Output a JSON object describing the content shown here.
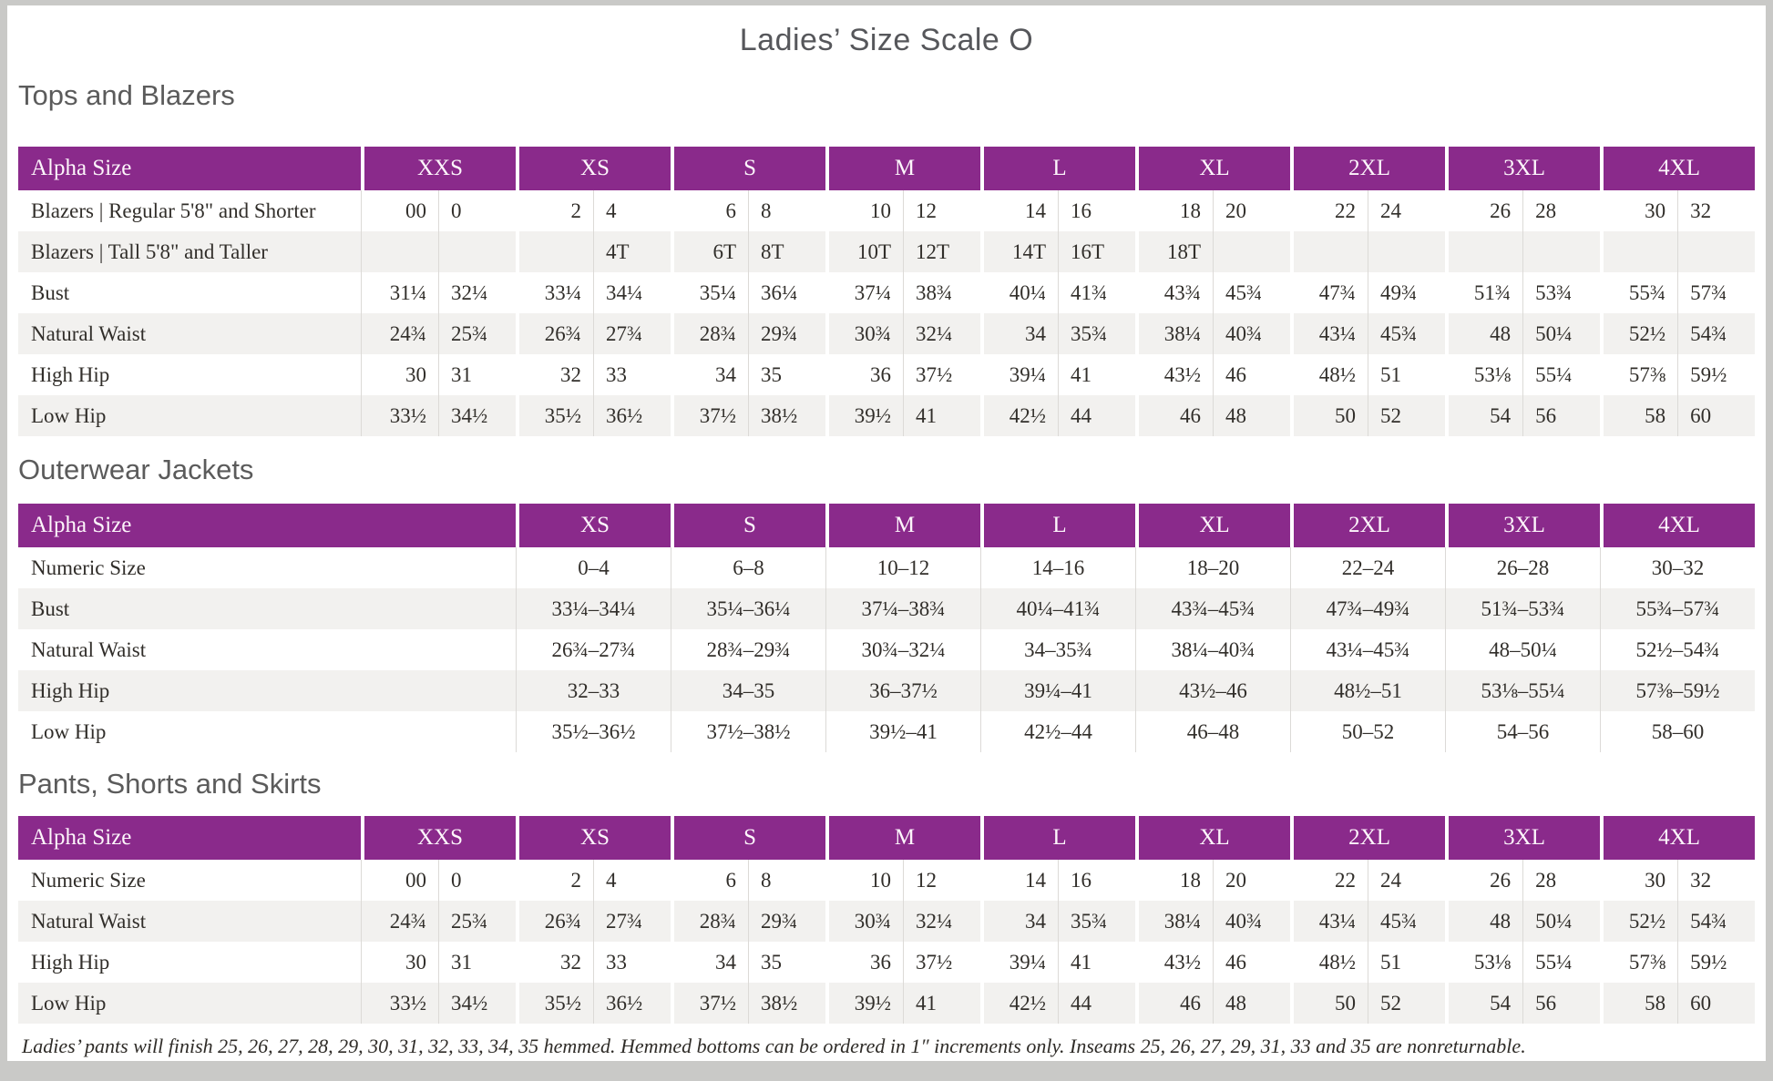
{
  "page": {
    "title": "Ladies’ Size Scale O"
  },
  "colors": {
    "accent": "#8A2A8B",
    "stripe": "#F2F1EF",
    "heading_gray": "#5B5B5B",
    "text": "#312E2A"
  },
  "tables": [
    {
      "id": "tops-and-blazers",
      "heading": "Tops and Blazers",
      "corner_label": "Alpha Size",
      "paired": true,
      "sizes": [
        "XXS",
        "XS",
        "S",
        "M",
        "L",
        "XL",
        "2XL",
        "3XL",
        "4XL"
      ],
      "rows": [
        {
          "label": "Blazers | Regular 5'8\" and Shorter",
          "values": [
            [
              "00",
              "0"
            ],
            [
              "2",
              "4"
            ],
            [
              "6",
              "8"
            ],
            [
              "10",
              "12"
            ],
            [
              "14",
              "16"
            ],
            [
              "18",
              "20"
            ],
            [
              "22",
              "24"
            ],
            [
              "26",
              "28"
            ],
            [
              "30",
              "32"
            ]
          ]
        },
        {
          "label": "Blazers | Tall 5'8\" and Taller",
          "values": [
            [
              "",
              ""
            ],
            [
              "",
              "4T"
            ],
            [
              "6T",
              "8T"
            ],
            [
              "10T",
              "12T"
            ],
            [
              "14T",
              "16T"
            ],
            [
              "18T",
              ""
            ],
            [
              "",
              ""
            ],
            [
              "",
              ""
            ],
            [
              "",
              ""
            ]
          ]
        },
        {
          "label": "Bust",
          "values": [
            [
              "31¼",
              "32¼"
            ],
            [
              "33¼",
              "34¼"
            ],
            [
              "35¼",
              "36¼"
            ],
            [
              "37¼",
              "38¾"
            ],
            [
              "40¼",
              "41¾"
            ],
            [
              "43¾",
              "45¾"
            ],
            [
              "47¾",
              "49¾"
            ],
            [
              "51¾",
              "53¾"
            ],
            [
              "55¾",
              "57¾"
            ]
          ]
        },
        {
          "label": "Natural Waist",
          "values": [
            [
              "24¾",
              "25¾"
            ],
            [
              "26¾",
              "27¾"
            ],
            [
              "28¾",
              "29¾"
            ],
            [
              "30¾",
              "32¼"
            ],
            [
              "34",
              "35¾"
            ],
            [
              "38¼",
              "40¾"
            ],
            [
              "43¼",
              "45¾"
            ],
            [
              "48",
              "50¼"
            ],
            [
              "52½",
              "54¾"
            ]
          ]
        },
        {
          "label": "High Hip",
          "values": [
            [
              "30",
              "31"
            ],
            [
              "32",
              "33"
            ],
            [
              "34",
              "35"
            ],
            [
              "36",
              "37½"
            ],
            [
              "39¼",
              "41"
            ],
            [
              "43½",
              "46"
            ],
            [
              "48½",
              "51"
            ],
            [
              "53⅛",
              "55¼"
            ],
            [
              "57⅜",
              "59½"
            ]
          ]
        },
        {
          "label": "Low Hip",
          "values": [
            [
              "33½",
              "34½"
            ],
            [
              "35½",
              "36½"
            ],
            [
              "37½",
              "38½"
            ],
            [
              "39½",
              "41"
            ],
            [
              "42½",
              "44"
            ],
            [
              "46",
              "48"
            ],
            [
              "50",
              "52"
            ],
            [
              "54",
              "56"
            ],
            [
              "58",
              "60"
            ]
          ]
        }
      ]
    },
    {
      "id": "outerwear-jackets",
      "heading": "Outerwear Jackets",
      "corner_label": "Alpha Size",
      "paired": false,
      "sizes": [
        "XS",
        "S",
        "M",
        "L",
        "XL",
        "2XL",
        "3XL",
        "4XL"
      ],
      "rows": [
        {
          "label": "Numeric Size",
          "values": [
            "0–4",
            "6–8",
            "10–12",
            "14–16",
            "18–20",
            "22–24",
            "26–28",
            "30–32"
          ]
        },
        {
          "label": "Bust",
          "values": [
            "33¼–34¼",
            "35¼–36¼",
            "37¼–38¾",
            "40¼–41¾",
            "43¾–45¾",
            "47¾–49¾",
            "51¾–53¾",
            "55¾–57¾"
          ]
        },
        {
          "label": "Natural Waist",
          "values": [
            "26¾–27¾",
            "28¾–29¾",
            "30¾–32¼",
            "34–35¾",
            "38¼–40¾",
            "43¼–45¾",
            "48–50¼",
            "52½–54¾"
          ]
        },
        {
          "label": "High Hip",
          "values": [
            "32–33",
            "34–35",
            "36–37½",
            "39¼–41",
            "43½–46",
            "48½–51",
            "53⅛–55¼",
            "57⅜–59½"
          ]
        },
        {
          "label": "Low Hip",
          "values": [
            "35½–36½",
            "37½–38½",
            "39½–41",
            "42½–44",
            "46–48",
            "50–52",
            "54–56",
            "58–60"
          ]
        }
      ]
    },
    {
      "id": "pants-shorts-skirts",
      "heading": "Pants, Shorts and Skirts",
      "corner_label": "Alpha Size",
      "paired": true,
      "sizes": [
        "XXS",
        "XS",
        "S",
        "M",
        "L",
        "XL",
        "2XL",
        "3XL",
        "4XL"
      ],
      "rows": [
        {
          "label": "Numeric Size",
          "values": [
            [
              "00",
              "0"
            ],
            [
              "2",
              "4"
            ],
            [
              "6",
              "8"
            ],
            [
              "10",
              "12"
            ],
            [
              "14",
              "16"
            ],
            [
              "18",
              "20"
            ],
            [
              "22",
              "24"
            ],
            [
              "26",
              "28"
            ],
            [
              "30",
              "32"
            ]
          ]
        },
        {
          "label": "Natural Waist",
          "values": [
            [
              "24¾",
              "25¾"
            ],
            [
              "26¾",
              "27¾"
            ],
            [
              "28¾",
              "29¾"
            ],
            [
              "30¾",
              "32¼"
            ],
            [
              "34",
              "35¾"
            ],
            [
              "38¼",
              "40¾"
            ],
            [
              "43¼",
              "45¾"
            ],
            [
              "48",
              "50¼"
            ],
            [
              "52½",
              "54¾"
            ]
          ]
        },
        {
          "label": "High Hip",
          "values": [
            [
              "30",
              "31"
            ],
            [
              "32",
              "33"
            ],
            [
              "34",
              "35"
            ],
            [
              "36",
              "37½"
            ],
            [
              "39¼",
              "41"
            ],
            [
              "43½",
              "46"
            ],
            [
              "48½",
              "51"
            ],
            [
              "53⅛",
              "55¼"
            ],
            [
              "57⅜",
              "59½"
            ]
          ]
        },
        {
          "label": "Low Hip",
          "values": [
            [
              "33½",
              "34½"
            ],
            [
              "35½",
              "36½"
            ],
            [
              "37½",
              "38½"
            ],
            [
              "39½",
              "41"
            ],
            [
              "42½",
              "44"
            ],
            [
              "46",
              "48"
            ],
            [
              "50",
              "52"
            ],
            [
              "54",
              "56"
            ],
            [
              "58",
              "60"
            ]
          ]
        }
      ]
    }
  ],
  "footnote": "Ladies’ pants will finish 25, 26, 27, 28, 29, 30, 31, 32, 33, 34, 35 hemmed. Hemmed bottoms can be ordered in 1″ increments only. Inseams 25, 26, 27, 29, 31, 33 and 35 are nonreturnable."
}
